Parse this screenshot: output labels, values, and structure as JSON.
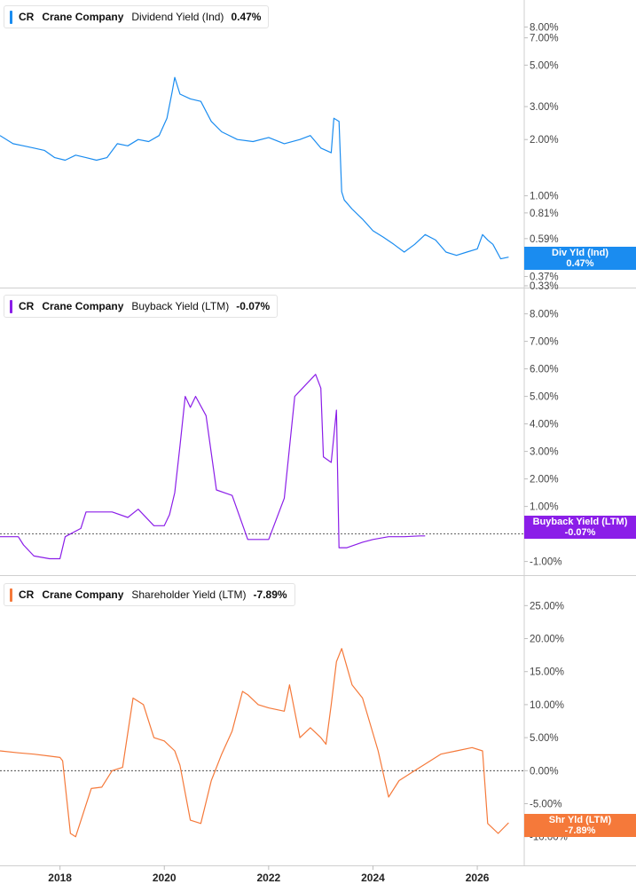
{
  "chart_data": [
    {
      "type": "line",
      "ticker": "CR",
      "company": "Crane Company",
      "metric": "Dividend Yield (Ind)",
      "current_value": "0.47%",
      "tag_label": "Div Yld (Ind)",
      "tag_value": "0.47%",
      "color": "#1a8cf0",
      "scale": "log",
      "ylim": [
        0.33,
        10
      ],
      "y_ticks": [
        "8.00%",
        "7.00%",
        "5.00%",
        "3.00%",
        "2.00%",
        "1.00%",
        "0.81%",
        "0.59%",
        "0.37%",
        "0.33%"
      ],
      "series": [
        {
          "x": [
            2016.85,
            2017.1,
            2017.3,
            2017.5,
            2017.7,
            2017.9,
            2018.1,
            2018.3,
            2018.5,
            2018.7,
            2018.9,
            2019.1,
            2019.3,
            2019.5,
            2019.7,
            2019.9,
            2020.05,
            2020.15,
            2020.2,
            2020.3,
            2020.5,
            2020.7,
            2020.9,
            2021.1,
            2021.4,
            2021.7,
            2022.0,
            2022.3,
            2022.6,
            2022.8,
            2023.0,
            2023.2,
            2023.25,
            2023.35,
            2023.4,
            2023.45,
            2023.6,
            2023.8,
            2024.0,
            2024.2,
            2024.4,
            2024.6,
            2024.8,
            2025.0,
            2025.2,
            2025.4,
            2025.6,
            2025.8,
            2026.0,
            2026.1,
            2026.2,
            2026.3,
            2026.45,
            2026.6
          ],
          "values": [
            2.1,
            1.9,
            1.85,
            1.8,
            1.75,
            1.6,
            1.55,
            1.65,
            1.6,
            1.55,
            1.6,
            1.9,
            1.85,
            2.0,
            1.95,
            2.1,
            2.6,
            3.6,
            4.3,
            3.5,
            3.3,
            3.2,
            2.5,
            2.2,
            2.0,
            1.95,
            2.05,
            1.9,
            2.0,
            2.1,
            1.8,
            1.7,
            2.6,
            2.5,
            1.05,
            0.95,
            0.85,
            0.75,
            0.65,
            0.6,
            0.55,
            0.5,
            0.55,
            0.62,
            0.58,
            0.5,
            0.48,
            0.5,
            0.52,
            0.62,
            0.58,
            0.55,
            0.46,
            0.47
          ]
        }
      ]
    },
    {
      "type": "line",
      "ticker": "CR",
      "company": "Crane Company",
      "metric": "Buyback Yield (LTM)",
      "current_value": "-0.07%",
      "tag_label": "Buyback Yield (LTM)",
      "tag_value": "-0.07%",
      "color": "#8b1ee8",
      "ylim": [
        -1.4,
        8.6
      ],
      "y_ticks": [
        "8.00%",
        "7.00%",
        "6.00%",
        "5.00%",
        "4.00%",
        "3.00%",
        "2.00%",
        "1.00%",
        "-1.00%"
      ],
      "zero_line": 0,
      "series": [
        {
          "x": [
            2016.85,
            2017.2,
            2017.3,
            2017.5,
            2017.8,
            2018.0,
            2018.1,
            2018.4,
            2018.5,
            2018.8,
            2019.0,
            2019.3,
            2019.5,
            2019.8,
            2020.0,
            2020.1,
            2020.2,
            2020.3,
            2020.4,
            2020.5,
            2020.6,
            2020.8,
            2021.0,
            2021.3,
            2021.6,
            2021.9,
            2022.0,
            2022.3,
            2022.5,
            2022.7,
            2022.9,
            2023.0,
            2023.05,
            2023.2,
            2023.3,
            2023.35,
            2023.5,
            2023.8,
            2024.0,
            2024.3,
            2024.6,
            2024.9,
            2025.0
          ],
          "values": [
            -0.1,
            -0.1,
            -0.4,
            -0.8,
            -0.9,
            -0.9,
            -0.1,
            0.2,
            0.8,
            0.8,
            0.8,
            0.6,
            0.9,
            0.3,
            0.3,
            0.7,
            1.5,
            3.2,
            5.0,
            4.6,
            5.0,
            4.3,
            1.6,
            1.4,
            -0.2,
            -0.2,
            -0.2,
            1.3,
            5.0,
            5.4,
            5.8,
            5.3,
            2.8,
            2.6,
            4.5,
            -0.5,
            -0.5,
            -0.3,
            -0.2,
            -0.1,
            -0.1,
            -0.07,
            -0.07
          ]
        }
      ]
    },
    {
      "type": "line",
      "ticker": "CR",
      "company": "Crane Company",
      "metric": "Shareholder Yield (LTM)",
      "current_value": "-7.89%",
      "tag_label": "Shr Yld (LTM)",
      "tag_value": "-7.89%",
      "color": "#f5793a",
      "ylim": [
        -13,
        28
      ],
      "y_ticks": [
        "25.00%",
        "20.00%",
        "15.00%",
        "10.00%",
        "5.00%",
        "0.00%",
        "-5.00%",
        "-10.00%"
      ],
      "zero_line": 0,
      "series": [
        {
          "x": [
            2016.85,
            2017.2,
            2017.5,
            2017.8,
            2018.0,
            2018.05,
            2018.2,
            2018.3,
            2018.6,
            2018.8,
            2019.0,
            2019.2,
            2019.4,
            2019.6,
            2019.8,
            2020.0,
            2020.2,
            2020.3,
            2020.5,
            2020.7,
            2020.9,
            2021.1,
            2021.3,
            2021.5,
            2021.6,
            2021.8,
            2022.0,
            2022.3,
            2022.4,
            2022.6,
            2022.8,
            2023.0,
            2023.1,
            2023.2,
            2023.3,
            2023.4,
            2023.6,
            2023.8,
            2024.1,
            2024.3,
            2024.5,
            2024.8,
            2025.0,
            2025.3,
            2025.6,
            2025.9,
            2026.1,
            2026.2,
            2026.4,
            2026.6
          ],
          "values": [
            3.0,
            2.7,
            2.5,
            2.2,
            2.0,
            1.5,
            -9.5,
            -10.0,
            -2.7,
            -2.5,
            0.0,
            0.5,
            11.0,
            10.0,
            5.0,
            4.5,
            3.0,
            0.8,
            -7.5,
            -8.0,
            -1.5,
            2.5,
            6.0,
            12.0,
            11.5,
            10.0,
            9.5,
            9.0,
            13.0,
            5.0,
            6.5,
            5.0,
            4.0,
            10.0,
            16.5,
            18.5,
            13.0,
            11.0,
            3.0,
            -4.0,
            -1.5,
            0.0,
            1.0,
            2.5,
            3.0,
            3.5,
            3.0,
            -8.0,
            -9.5,
            -7.89
          ]
        }
      ]
    }
  ],
  "x_axis": {
    "range": [
      2016.85,
      2026.9
    ],
    "ticks": [
      "2018",
      "2020",
      "2022",
      "2024",
      "2026"
    ]
  }
}
